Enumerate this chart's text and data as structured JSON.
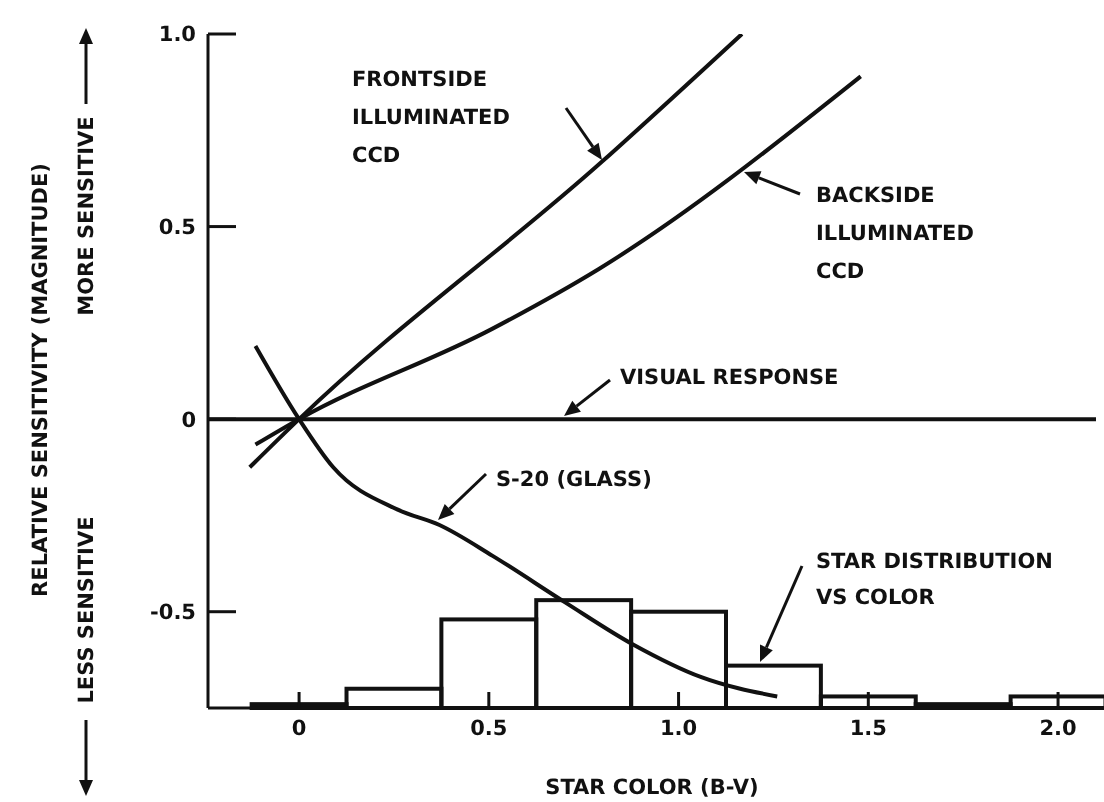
{
  "chart_data": {
    "type": "line",
    "xlabel": "STAR COLOR (B-V)",
    "ylabel": "RELATIVE SENSITIVITY (MAGNITUDE)",
    "xlim": [
      -0.24,
      2.1
    ],
    "ylim": [
      -0.75,
      1.0
    ],
    "xticks": [
      0,
      0.5,
      {
        "value": 1.0,
        "label": "1.0"
      },
      1.5,
      {
        "value": 2.0,
        "label": "2.0"
      }
    ],
    "yticks": [
      -0.5,
      0,
      0.5,
      {
        "value": 1.0,
        "label": "1.0"
      }
    ],
    "grid": false,
    "legend": false,
    "marker": "none",
    "line_style": "solid",
    "series": [
      {
        "color": "#111111",
        "x": [
          -0.13,
          0,
          0.8,
          1.167
        ],
        "values": [
          -0.125,
          0,
          0.67,
          1.0
        ]
      },
      {
        "color": "#111111",
        "x": [
          -0.115,
          0,
          0.51,
          0.79,
          1.48
        ],
        "values": [
          -0.066,
          0,
          0.235,
          0.39,
          0.89
        ]
      },
      {
        "color": "#111111",
        "x": [
          -0.24,
          2.1
        ],
        "values": [
          0,
          0
        ]
      },
      {
        "color": "#111111",
        "x": [
          -0.115,
          0,
          0.09,
          0.26,
          0.37,
          0.51,
          0.7,
          0.88,
          1.06,
          1.26
        ],
        "values": [
          0.19,
          0,
          -0.125,
          -0.235,
          -0.275,
          -0.355,
          -0.475,
          -0.585,
          -0.67,
          -0.72
        ]
      },
      {
        "type": "bar",
        "color": "#111111",
        "x": [
          0,
          0.25,
          0.5,
          0.75,
          1.0,
          1.25,
          1.5,
          1.75,
          2.0
        ],
        "base": [
          -0.75,
          -0.75,
          -0.75,
          -0.75,
          -0.75,
          -0.75,
          -0.75,
          -0.75,
          -0.75
        ],
        "values": [
          0.01,
          0.05,
          0.23,
          0.28,
          0.25,
          0.11,
          0.03,
          0.01,
          0.03
        ]
      }
    ],
    "annotations": [
      "FRONTSIDE ILLUMINATED CCD",
      "BACKSIDE ILLUMINATED CCD",
      "VISUAL RESPONSE",
      "S-20 (GLASS)",
      "STAR DISTRIBUTION VS COLOR",
      "MORE SENSITIVE",
      "LESS SENSITIVE"
    ]
  }
}
